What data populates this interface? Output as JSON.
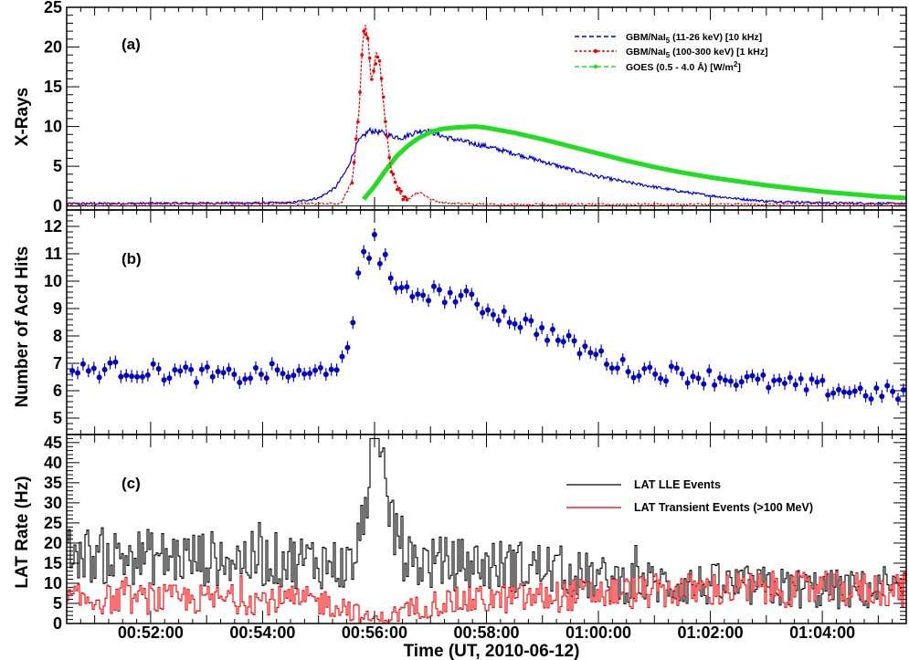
{
  "xlabel": "Time (UT, 2010-06-12)",
  "x_ticks": [
    "00:52:00",
    "00:54:00",
    "00:56:00",
    "00:58:00",
    "01:00:00",
    "01:02:00",
    "01:04:00"
  ],
  "x_tick_minutes": [
    52,
    54,
    56,
    58,
    60,
    62,
    64
  ],
  "x_range_minutes": [
    50.5,
    65.5
  ],
  "chart_data": [
    {
      "panel": "(a)",
      "type": "line",
      "ylabel": "X-Rays",
      "ylim": [
        -0.5,
        25
      ],
      "y_ticks": [
        0,
        5,
        10,
        15,
        20,
        25
      ],
      "legend_position": "top-right",
      "series": [
        {
          "name": "GBM/NaI5 (11-26 keV) [10 kHz]",
          "name_main": "GBM/NaI",
          "name_sub": "5",
          "name_rest": " (11-26 keV) [10 kHz]",
          "color": "#0000dd",
          "x_minutes": [
            50.5,
            54.5,
            55.0,
            55.3,
            55.5,
            55.7,
            55.9,
            56.1,
            56.3,
            56.5,
            56.7,
            56.9,
            57.1,
            57.3,
            57.6,
            58.0,
            58.5,
            59.0,
            59.5,
            60.0,
            60.5,
            61.0,
            61.5,
            62.0,
            62.5,
            63.0,
            64.0,
            65.5
          ],
          "values": [
            0.3,
            0.4,
            1.0,
            2.3,
            4.5,
            8.0,
            9.5,
            9.3,
            8.8,
            8.6,
            9.2,
            9.6,
            9.1,
            8.6,
            8.1,
            7.5,
            6.6,
            5.6,
            4.6,
            3.7,
            3.0,
            2.4,
            1.8,
            1.3,
            0.9,
            0.6,
            0.4,
            0.3
          ]
        },
        {
          "name": "GBM/NaI5 (100-300 keV) [1 kHz]",
          "name_main": "GBM/NaI",
          "name_sub": "5",
          "name_rest": " (100-300 keV) [1 kHz]",
          "color": "#ee0000",
          "x_minutes": [
            50.5,
            55.4,
            55.6,
            55.72,
            55.8,
            55.87,
            55.95,
            56.03,
            56.1,
            56.18,
            56.25,
            56.3,
            56.4,
            56.5,
            56.6,
            56.7,
            56.8,
            56.9,
            57.0,
            57.2,
            57.5,
            58.0,
            65.5
          ],
          "values": [
            0.2,
            0.3,
            3.0,
            12.0,
            22.5,
            21.5,
            16.0,
            18.5,
            18.3,
            12.0,
            7.0,
            4.5,
            2.5,
            1.2,
            0.9,
            1.4,
            1.8,
            1.4,
            0.8,
            0.4,
            0.3,
            0.2,
            0.2
          ]
        },
        {
          "name": "GOES (0.5 - 4.0 Å) [W/m2]",
          "name_main": "GOES (0.5 - 4.0 Å) [W/m",
          "name_sup": "2",
          "name_rest": "]",
          "color": "#22dd22",
          "x_minutes": [
            55.8,
            56.0,
            56.2,
            56.4,
            56.6,
            56.8,
            57.0,
            57.2,
            57.5,
            57.8,
            58.0,
            58.5,
            59.0,
            59.5,
            60.0,
            60.5,
            61.0,
            61.5,
            62.0,
            62.5,
            63.0,
            63.5,
            64.0,
            64.5,
            65.0,
            65.5
          ],
          "values": [
            0.8,
            2.5,
            4.5,
            6.3,
            7.6,
            8.6,
            9.3,
            9.7,
            9.9,
            10.0,
            9.85,
            9.2,
            8.4,
            7.5,
            6.6,
            5.7,
            4.9,
            4.2,
            3.6,
            3.1,
            2.6,
            2.2,
            1.8,
            1.5,
            1.2,
            1.0
          ]
        }
      ]
    },
    {
      "panel": "(b)",
      "type": "scatter",
      "ylabel": "Number of Acd Hits",
      "ylim": [
        4.4,
        12.6
      ],
      "y_ticks": [
        5,
        6,
        7,
        8,
        9,
        10,
        11,
        12
      ],
      "color": "#0000cc",
      "x_minutes": [
        50.6,
        51.2,
        52.0,
        52.8,
        53.5,
        54.2,
        54.8,
        55.2,
        55.5,
        55.6,
        55.7,
        55.8,
        55.9,
        56.0,
        56.1,
        56.2,
        56.3,
        56.4,
        56.6,
        56.9,
        57.2,
        57.6,
        58.0,
        58.5,
        59.0,
        59.5,
        60.0,
        60.5,
        61.0,
        61.5,
        62.0,
        62.5,
        63.0,
        63.5,
        64.0,
        64.5,
        65.0,
        65.4
      ],
      "values": [
        6.7,
        6.8,
        6.7,
        6.6,
        6.5,
        6.7,
        6.5,
        6.9,
        7.1,
        8.2,
        10.2,
        11.1,
        10.8,
        11.7,
        10.6,
        11.0,
        10.0,
        9.7,
        9.5,
        9.6,
        9.5,
        9.4,
        9.0,
        8.6,
        8.2,
        7.7,
        7.3,
        6.8,
        6.7,
        6.6,
        6.5,
        6.4,
        6.3,
        6.2,
        6.1,
        6.0,
        5.9,
        5.9
      ]
    },
    {
      "panel": "(c)",
      "type": "line",
      "ylabel": "LAT Rate (Hz)",
      "ylim": [
        0,
        47
      ],
      "y_ticks": [
        0,
        5,
        10,
        15,
        20,
        25,
        30,
        35,
        40,
        45
      ],
      "legend_position": "right",
      "series": [
        {
          "name": "LAT LLE Events",
          "color": "#000000",
          "x_minutes": [
            50.5,
            52.0,
            53.5,
            55.0,
            55.5,
            55.7,
            55.8,
            55.9,
            56.0,
            56.1,
            56.3,
            56.5,
            56.6,
            57.0,
            58.0,
            59.0,
            60.0,
            61.0,
            62.0,
            63.0,
            64.0,
            65.5
          ],
          "values": [
            17.0,
            16.5,
            16.0,
            15.5,
            14.0,
            18.0,
            31.0,
            38.0,
            41.0,
            36.0,
            26.0,
            18.0,
            15.5,
            15.0,
            14.5,
            14.0,
            11.0,
            10.0,
            9.5,
            9.0,
            8.5,
            8.0
          ]
        },
        {
          "name": "LAT Transient Events (>100 MeV)",
          "color": "#ee0000",
          "x_minutes": [
            50.5,
            52.0,
            53.5,
            55.0,
            55.5,
            55.8,
            56.0,
            56.2,
            56.5,
            57.0,
            58.0,
            59.0,
            60.0,
            61.0,
            62.0,
            63.0,
            64.0,
            65.5
          ],
          "values": [
            6.0,
            6.0,
            6.0,
            5.5,
            4.0,
            1.5,
            1.0,
            1.5,
            3.0,
            5.0,
            6.0,
            6.5,
            7.5,
            8.0,
            8.5,
            8.5,
            8.5,
            8.5
          ]
        }
      ]
    }
  ],
  "panel_tags": {
    "a": "(a)",
    "b": "(b)",
    "c": "(c)"
  },
  "ylabels": {
    "a": "X-Rays",
    "b": "Number of Acd Hits",
    "c": "LAT Rate (Hz)"
  },
  "legend_c": {
    "lle": "LAT LLE Events",
    "transient": "LAT Transient Events (>100 MeV)"
  }
}
